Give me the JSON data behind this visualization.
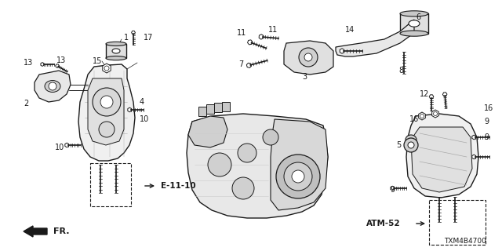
{
  "background_color": "#ffffff",
  "fig_width": 6.4,
  "fig_height": 3.2,
  "dpi": 100,
  "diagram_code": "TXM4B4700",
  "ref_code_left": "E-11-10",
  "ref_code_right": "ATM-52",
  "fr_label": "FR.",
  "dark": "#1a1a1a",
  "gray": "#888888",
  "lightgray": "#cccccc",
  "midgray": "#aaaaaa"
}
